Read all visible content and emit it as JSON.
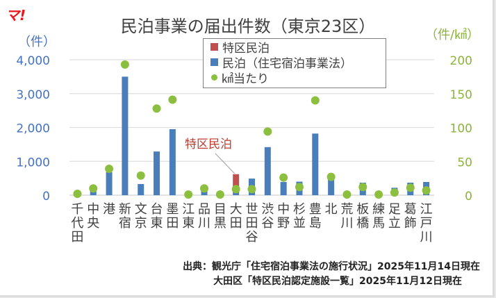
{
  "logo": "マ!",
  "title": "民泊事業の届出件数（東京23区）",
  "axis": {
    "left_unit": "（件）",
    "right_unit": "（件/㎢）",
    "left_ticks": [
      "4,000",
      "3,000",
      "2,000",
      "1,000",
      "0"
    ],
    "right_ticks": [
      "200",
      "150",
      "100",
      "50",
      "0"
    ]
  },
  "legend": {
    "items": [
      {
        "label": "特区民泊",
        "color": "#c0504d",
        "shape": "square"
      },
      {
        "label": "民泊（住宅宿泊事業法）",
        "color": "#4a7ebb",
        "shape": "square"
      },
      {
        "label": "㎢当たり",
        "color": "#8cbe3f",
        "shape": "circle"
      }
    ]
  },
  "callout": "特区民泊",
  "source": {
    "line1": "出典：観光庁「住宅宿泊事業法の施行状況」2025年11月14日現在",
    "line2": "大田区「特区民泊認定施設一覧」2025年11月12日現在"
  },
  "chart_data": {
    "type": "bar",
    "title": "民泊事業の届出件数（東京23区）",
    "xlabel": "",
    "ylabel": "（件）",
    "y2label": "（件/㎢）",
    "ylim": [
      0,
      4000
    ],
    "y2lim": [
      0,
      200
    ],
    "grid": true,
    "legend_position": "top-center",
    "stacked": true,
    "categories": [
      "千代田",
      "中央",
      "港",
      "新宿",
      "文京",
      "台東",
      "墨田",
      "江東",
      "品川",
      "目黒",
      "大田",
      "世田谷",
      "渋谷",
      "中野",
      "杉並",
      "豊島",
      "北",
      "荒川",
      "板橋",
      "練馬",
      "足立",
      "葛飾",
      "江戸川"
    ],
    "series": [
      {
        "name": "民泊（住宅宿泊事業法）",
        "type": "bar",
        "axis": "left",
        "color": "#4a7ebb",
        "values": [
          20,
          120,
          680,
          3500,
          330,
          1290,
          1950,
          40,
          180,
          20,
          220,
          490,
          1420,
          390,
          400,
          1820,
          490,
          20,
          370,
          30,
          220,
          370,
          390
        ]
      },
      {
        "name": "特区民泊",
        "type": "bar",
        "axis": "left",
        "color": "#c0504d",
        "values": [
          0,
          0,
          0,
          0,
          0,
          0,
          0,
          0,
          0,
          0,
          400,
          0,
          0,
          0,
          0,
          0,
          0,
          0,
          0,
          0,
          0,
          0,
          0
        ]
      },
      {
        "name": "㎢当たり",
        "type": "scatter",
        "axis": "right",
        "color": "#8cbe3f",
        "values": [
          2,
          10,
          39,
          193,
          29,
          128,
          141,
          1,
          10,
          1,
          9,
          9,
          94,
          26,
          12,
          140,
          27,
          1,
          12,
          1,
          4,
          11,
          7
        ]
      }
    ],
    "annotations": [
      "特区民泊"
    ]
  }
}
